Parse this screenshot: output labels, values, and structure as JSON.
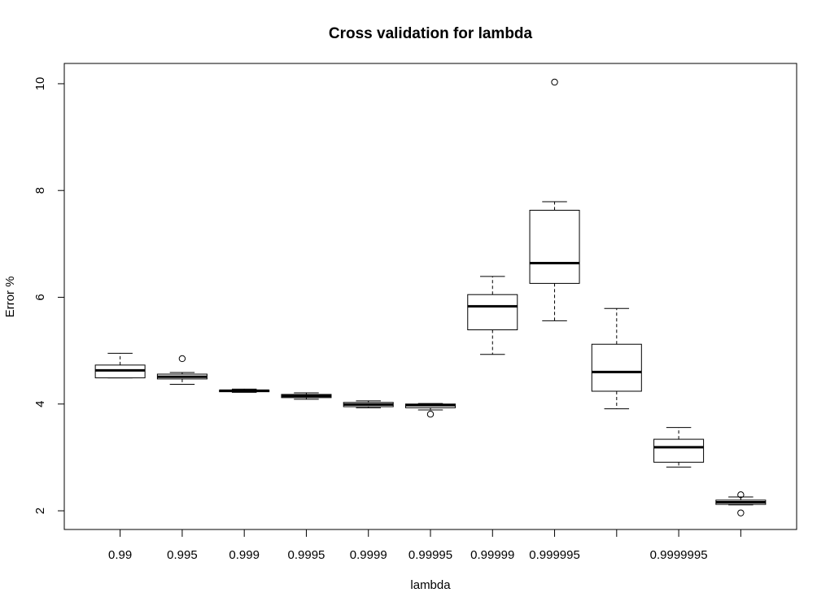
{
  "chart_data": {
    "type": "boxplot",
    "title": "Cross validation for lambda",
    "xlabel": "lambda",
    "ylabel": "Error %",
    "ylim": [
      1.65,
      10.38
    ],
    "yticks": [
      2,
      4,
      6,
      8,
      10
    ],
    "grid": false,
    "categories": [
      "0.99",
      "0.995",
      "0.999",
      "0.9995",
      "0.9999",
      "0.99995",
      "0.99999",
      "0.999995",
      "",
      "0.9999995",
      ""
    ],
    "boxes": [
      {
        "whisker_low": 4.49,
        "q1": 4.49,
        "median": 4.63,
        "q3": 4.73,
        "whisker_high": 4.95,
        "outliers": []
      },
      {
        "whisker_low": 4.37,
        "q1": 4.47,
        "median": 4.51,
        "q3": 4.56,
        "whisker_high": 4.59,
        "outliers": [
          4.85
        ]
      },
      {
        "whisker_low": 4.22,
        "q1": 4.23,
        "median": 4.25,
        "q3": 4.26,
        "whisker_high": 4.28,
        "outliers": []
      },
      {
        "whisker_low": 4.09,
        "q1": 4.12,
        "median": 4.15,
        "q3": 4.18,
        "whisker_high": 4.21,
        "outliers": []
      },
      {
        "whisker_low": 3.93,
        "q1": 3.95,
        "median": 3.99,
        "q3": 4.03,
        "whisker_high": 4.06,
        "outliers": []
      },
      {
        "whisker_low": 3.89,
        "q1": 3.93,
        "median": 3.98,
        "q3": 4.0,
        "whisker_high": 4.01,
        "outliers": [
          3.81
        ]
      },
      {
        "whisker_low": 4.93,
        "q1": 5.39,
        "median": 5.83,
        "q3": 6.05,
        "whisker_high": 6.39,
        "outliers": []
      },
      {
        "whisker_low": 5.56,
        "q1": 6.26,
        "median": 6.64,
        "q3": 7.63,
        "whisker_high": 7.79,
        "outliers": [
          10.03
        ]
      },
      {
        "whisker_low": 3.91,
        "q1": 4.24,
        "median": 4.6,
        "q3": 5.12,
        "whisker_high": 5.79,
        "outliers": []
      },
      {
        "whisker_low": 2.82,
        "q1": 2.91,
        "median": 3.19,
        "q3": 3.34,
        "whisker_high": 3.56,
        "outliers": []
      },
      {
        "whisker_low": 2.11,
        "q1": 2.12,
        "median": 2.16,
        "q3": 2.2,
        "whisker_high": 2.26,
        "outliers": [
          2.3,
          1.96
        ]
      }
    ]
  }
}
